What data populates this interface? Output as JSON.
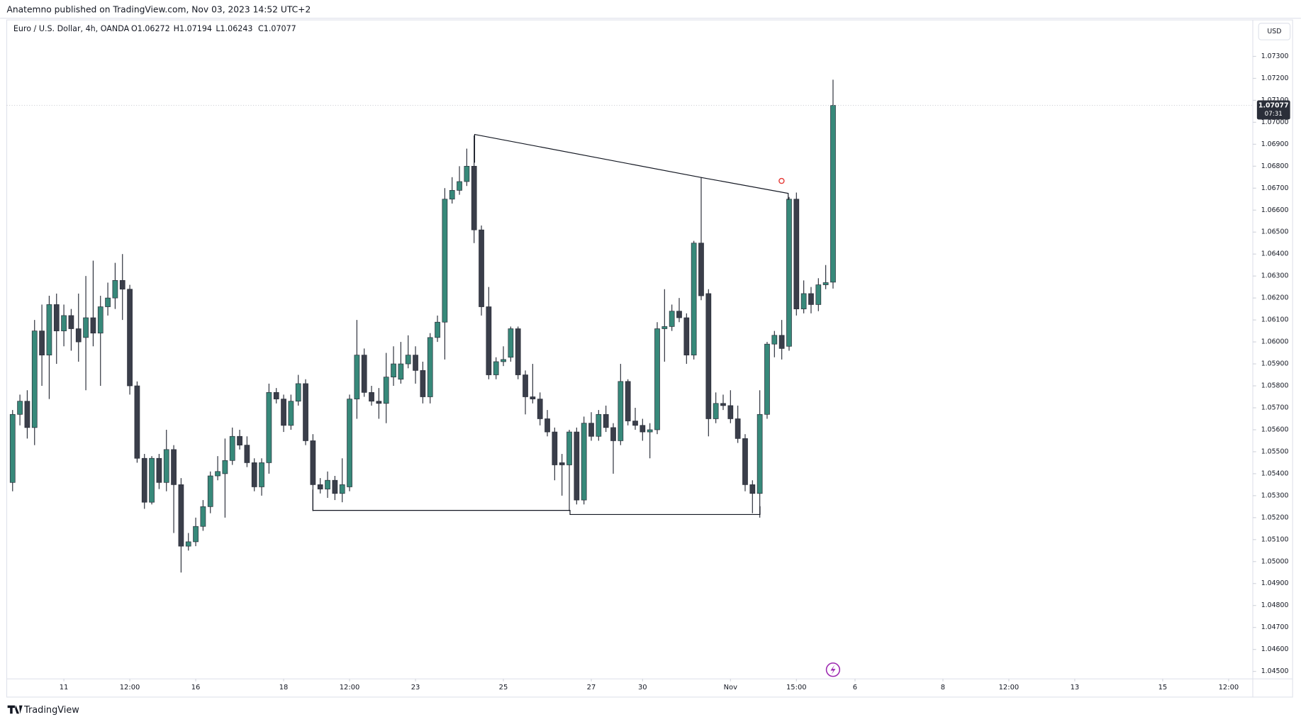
{
  "header": {
    "publisher": "Anatemno published on TradingView.com, Nov 03, 2023 14:52 UTC+2",
    "brand": "TradingView"
  },
  "chart_data": {
    "type": "candlestick",
    "symbol": "Euro / U.S. Dollar, 4h, OANDA",
    "ohlc_legend": [
      "O1.06272",
      "H1.07194",
      "L1.06243",
      "C1.07077"
    ],
    "currency": "USD",
    "up_color": "#37897a",
    "down_color": "#3a3e4a",
    "open": [
      1.0536,
      1.0567,
      1.0573,
      1.0561,
      1.0605,
      1.0594,
      1.0617,
      1.0605,
      1.0612,
      1.0606,
      1.0602,
      1.0611,
      1.0604,
      1.0616,
      1.062,
      1.0628,
      1.0624,
      1.058,
      1.0547,
      1.0527,
      1.0547,
      1.0536,
      1.0551,
      1.0535,
      1.0507,
      1.0509,
      1.0516,
      1.0525,
      1.0539,
      1.054,
      1.0546,
      1.0557,
      1.0553,
      1.0545,
      1.0534,
      1.0545,
      1.0577,
      1.0574,
      1.0562,
      1.0573,
      1.0581,
      1.0555,
      1.0535,
      1.0533,
      1.0537,
      1.0531,
      1.0534,
      1.0574,
      1.0594,
      1.0577,
      1.0573,
      1.0572,
      1.0584,
      1.0583,
      1.059,
      1.0594,
      1.0587,
      1.0575,
      1.0602,
      1.0609,
      1.0665,
      1.0669,
      1.0673,
      1.068,
      1.0651,
      1.0616,
      1.0585,
      1.0591,
      1.0593,
      1.0606,
      1.0585,
      1.0575,
      1.0574,
      1.0565,
      1.0559,
      1.0545,
      1.0544,
      1.0559,
      1.0528,
      1.0563,
      1.0557,
      1.0567,
      1.0561,
      1.0555,
      1.0582,
      1.0564,
      1.0562,
      1.0559,
      1.056,
      1.0606,
      1.0607,
      1.0614,
      1.0611,
      1.0594,
      1.0645,
      1.0622,
      1.0565,
      1.0572,
      1.0571,
      1.0565,
      1.0556,
      1.0535,
      1.0531,
      1.0567,
      1.0599,
      1.0603,
      1.0598,
      1.0665,
      1.0615,
      1.0622,
      1.0617,
      1.0626,
      1.06272
    ],
    "high": [
      1.0569,
      1.0576,
      1.0578,
      1.061,
      1.0617,
      1.0621,
      1.0622,
      1.0617,
      1.0615,
      1.0622,
      1.063,
      1.0637,
      1.0621,
      1.0627,
      1.0636,
      1.064,
      1.0626,
      1.0582,
      1.0549,
      1.0548,
      1.0549,
      1.056,
      1.0553,
      1.0538,
      1.0513,
      1.052,
      1.0528,
      1.0541,
      1.0548,
      1.0556,
      1.0561,
      1.056,
      1.0557,
      1.0547,
      1.0547,
      1.0581,
      1.0579,
      1.0576,
      1.0576,
      1.0585,
      1.0583,
      1.0558,
      1.0538,
      1.0541,
      1.0539,
      1.0547,
      1.0576,
      1.061,
      1.0597,
      1.058,
      1.0579,
      1.0595,
      1.0598,
      1.06,
      1.0603,
      1.0598,
      1.0591,
      1.0604,
      1.0612,
      1.067,
      1.0675,
      1.068,
      1.0688,
      1.0694,
      1.0653,
      1.0625,
      1.0593,
      1.0598,
      1.0607,
      1.0607,
      1.0587,
      1.059,
      1.0577,
      1.0569,
      1.0561,
      1.0549,
      1.056,
      1.0561,
      1.0566,
      1.0568,
      1.0569,
      1.0571,
      1.0563,
      1.059,
      1.0583,
      1.057,
      1.0565,
      1.0563,
      1.0609,
      1.0624,
      1.0617,
      1.062,
      1.0613,
      1.0646,
      1.0675,
      1.0624,
      1.0577,
      1.0576,
      1.0578,
      1.0571,
      1.0558,
      1.0537,
      1.0578,
      1.06,
      1.0605,
      1.061,
      1.0666,
      1.0668,
      1.0628,
      1.0625,
      1.0629,
      1.0635,
      1.07194
    ],
    "low": [
      1.0532,
      1.0562,
      1.0556,
      1.0553,
      1.058,
      1.0574,
      1.059,
      1.0598,
      1.0596,
      1.0591,
      1.0578,
      1.0598,
      1.058,
      1.0612,
      1.0615,
      1.061,
      1.0576,
      1.0545,
      1.0524,
      1.0526,
      1.0533,
      1.0532,
      1.0513,
      1.0495,
      1.0505,
      1.0507,
      1.0514,
      1.0522,
      1.0537,
      1.052,
      1.0544,
      1.0551,
      1.0543,
      1.0532,
      1.053,
      1.054,
      1.0572,
      1.0559,
      1.056,
      1.0571,
      1.0553,
      1.0523,
      1.0531,
      1.0529,
      1.0528,
      1.0527,
      1.0532,
      1.0565,
      1.0575,
      1.0571,
      1.0565,
      1.0563,
      1.058,
      1.0581,
      1.0588,
      1.0581,
      1.0572,
      1.0572,
      1.06,
      1.0592,
      1.0663,
      1.0667,
      1.0671,
      1.0645,
      1.0612,
      1.0583,
      1.0583,
      1.0589,
      1.0591,
      1.0583,
      1.0567,
      1.0572,
      1.0562,
      1.0557,
      1.0537,
      1.053,
      1.0523,
      1.0526,
      1.0526,
      1.0555,
      1.0555,
      1.0559,
      1.054,
      1.0553,
      1.0562,
      1.056,
      1.0555,
      1.0547,
      1.0558,
      1.0591,
      1.0605,
      1.0609,
      1.059,
      1.0592,
      1.0619,
      1.0557,
      1.0563,
      1.0569,
      1.0563,
      1.0554,
      1.0532,
      1.0522,
      1.052,
      1.0565,
      1.0593,
      1.0592,
      1.0596,
      1.0612,
      1.0613,
      1.0613,
      1.0614,
      1.0624,
      1.06243
    ],
    "close": [
      1.0567,
      1.0573,
      1.0561,
      1.0605,
      1.0594,
      1.0617,
      1.0605,
      1.0612,
      1.0606,
      1.06,
      1.0611,
      1.0604,
      1.0616,
      1.062,
      1.0628,
      1.0624,
      1.058,
      1.0547,
      1.0527,
      1.0547,
      1.0536,
      1.0551,
      1.0535,
      1.0507,
      1.0509,
      1.0516,
      1.0525,
      1.0539,
      1.0541,
      1.0546,
      1.0557,
      1.0553,
      1.0545,
      1.0534,
      1.0545,
      1.0577,
      1.0574,
      1.0562,
      1.0573,
      1.0581,
      1.0555,
      1.0535,
      1.0533,
      1.0537,
      1.0531,
      1.0535,
      1.0574,
      1.0594,
      1.0577,
      1.0573,
      1.0572,
      1.0584,
      1.059,
      1.059,
      1.0594,
      1.0587,
      1.0575,
      1.0602,
      1.0609,
      1.0665,
      1.0669,
      1.0673,
      1.068,
      1.0651,
      1.0616,
      1.0585,
      1.0591,
      1.0592,
      1.0606,
      1.0585,
      1.0575,
      1.0574,
      1.0565,
      1.0559,
      1.0544,
      1.0544,
      1.0559,
      1.0528,
      1.0563,
      1.0557,
      1.0567,
      1.0561,
      1.0555,
      1.0582,
      1.0564,
      1.0562,
      1.0559,
      1.056,
      1.0606,
      1.0607,
      1.0614,
      1.0611,
      1.0594,
      1.0645,
      1.0621,
      1.0565,
      1.0572,
      1.0571,
      1.0565,
      1.0556,
      1.0535,
      1.0531,
      1.0567,
      1.0599,
      1.0603,
      1.0597,
      1.0665,
      1.0615,
      1.0622,
      1.0617,
      1.0626,
      1.0627,
      1.07077
    ],
    "xlim": [
      -0.8,
      169.3
    ],
    "xticks": [
      {
        "value": 7,
        "label": "11"
      },
      {
        "value": 16,
        "label": "12:00"
      },
      {
        "value": 25,
        "label": "16"
      },
      {
        "value": 37,
        "label": "18"
      },
      {
        "value": 46,
        "label": "12:00"
      },
      {
        "value": 55,
        "label": "23"
      },
      {
        "value": 67,
        "label": "25"
      },
      {
        "value": 79,
        "label": "27"
      },
      {
        "value": 86,
        "label": "30"
      },
      {
        "value": 98,
        "label": "Nov"
      },
      {
        "value": 107,
        "label": "15:00"
      },
      {
        "value": 115,
        "label": "6"
      },
      {
        "value": 127,
        "label": "8"
      },
      {
        "value": 136,
        "label": "12:00"
      },
      {
        "value": 145,
        "label": "13"
      },
      {
        "value": 157,
        "label": "15"
      },
      {
        "value": 166,
        "label": "12:00"
      }
    ],
    "ylim": [
      1.04466,
      1.07466
    ],
    "yticks": [
      {
        "value": 1.073,
        "label": "1.07300"
      },
      {
        "value": 1.072,
        "label": "1.07200"
      },
      {
        "value": 1.071,
        "label": "1.07100"
      },
      {
        "value": 1.07,
        "label": "1.07000"
      },
      {
        "value": 1.069,
        "label": "1.06900"
      },
      {
        "value": 1.068,
        "label": "1.06800"
      },
      {
        "value": 1.067,
        "label": "1.06700"
      },
      {
        "value": 1.066,
        "label": "1.06600"
      },
      {
        "value": 1.065,
        "label": "1.06500"
      },
      {
        "value": 1.064,
        "label": "1.06400"
      },
      {
        "value": 1.063,
        "label": "1.06300"
      },
      {
        "value": 1.062,
        "label": "1.06200"
      },
      {
        "value": 1.061,
        "label": "1.06100"
      },
      {
        "value": 1.06,
        "label": "1.06000"
      },
      {
        "value": 1.059,
        "label": "1.05900"
      },
      {
        "value": 1.058,
        "label": "1.05800"
      },
      {
        "value": 1.057,
        "label": "1.05700"
      },
      {
        "value": 1.056,
        "label": "1.05600"
      },
      {
        "value": 1.055,
        "label": "1.05500"
      },
      {
        "value": 1.054,
        "label": "1.05400"
      },
      {
        "value": 1.053,
        "label": "1.05300"
      },
      {
        "value": 1.052,
        "label": "1.05200"
      },
      {
        "value": 1.051,
        "label": "1.05100"
      },
      {
        "value": 1.05,
        "label": "1.05000"
      },
      {
        "value": 1.049,
        "label": "1.04900"
      },
      {
        "value": 1.048,
        "label": "1.04800"
      },
      {
        "value": 1.047,
        "label": "1.04700"
      },
      {
        "value": 1.046,
        "label": "1.04600"
      },
      {
        "value": 1.045,
        "label": "1.04500"
      }
    ],
    "last_price": {
      "value": 1.07077,
      "label": "1.07077"
    },
    "countdown": "07:31",
    "grid": false
  }
}
